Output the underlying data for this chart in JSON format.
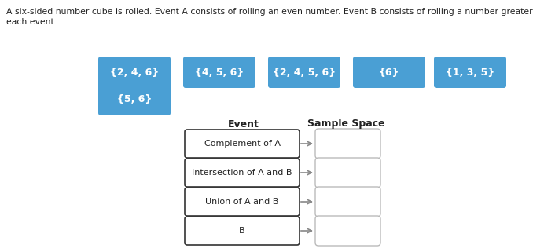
{
  "title_line1": "A six-sided number cube is rolled. Event A consists of rolling an even number. Event B consists of rolling a number greater than four. Match the correct sample space to",
  "title_line2": "each event.",
  "blue_boxes_row1": [
    {
      "label": "{2, 4, 6}"
    },
    {
      "label": "{4, 5, 6}"
    },
    {
      "label": "{2, 4, 5, 6}"
    },
    {
      "label": "{6}"
    },
    {
      "label": "{1, 3, 5}"
    }
  ],
  "blue_boxes_row2": [
    {
      "label": "{5, 6}"
    }
  ],
  "blue_box_color": "#4a9fd4",
  "events": [
    "Complement of A",
    "Intersection of A and B",
    "Union of A and B",
    "B"
  ],
  "text_color": "#222222",
  "box_edge_color": "#333333",
  "answer_box_edge_color": "#bbbbbb",
  "arrow_color": "#888888",
  "font_size_title": 7.8,
  "font_size_box_label": 9.0,
  "font_size_event": 8.0,
  "font_size_header": 9.0
}
